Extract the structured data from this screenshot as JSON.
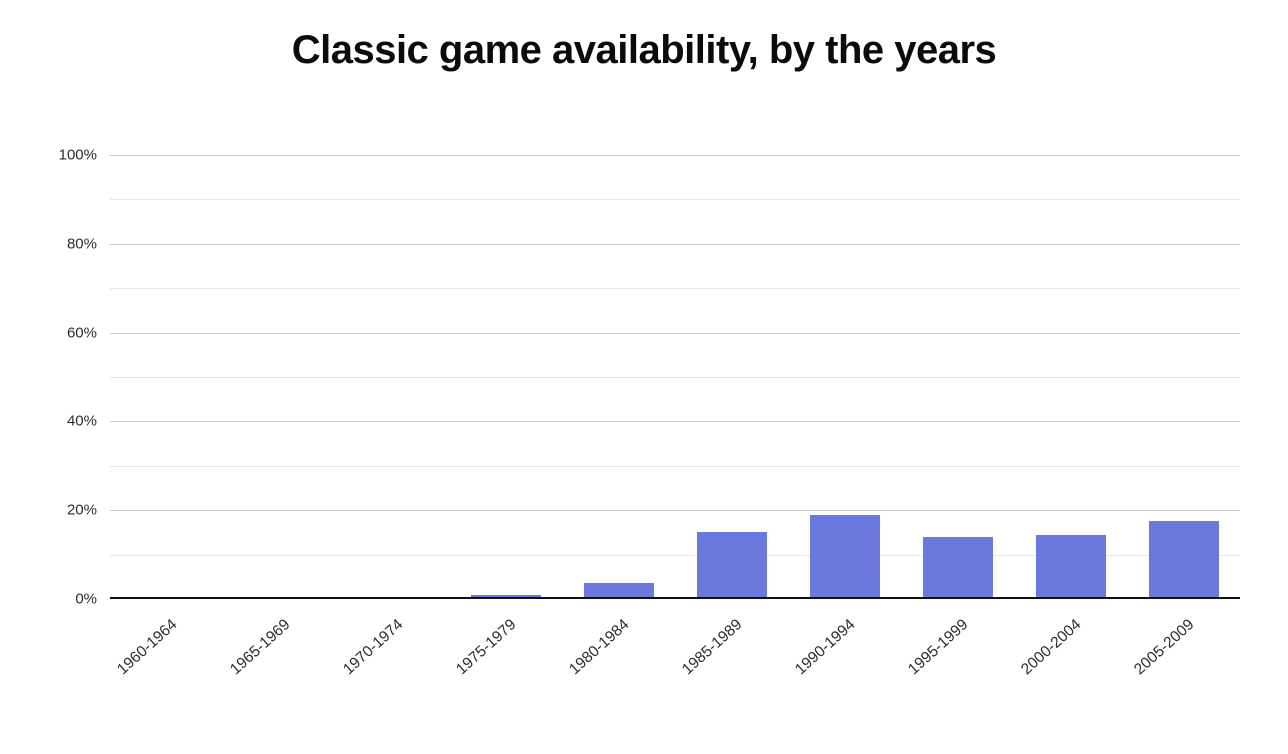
{
  "chart": {
    "title": "Classic game availability, by the years"
  },
  "chart_data": {
    "type": "bar",
    "title": "Classic game availability, by the years",
    "categories": [
      "1960-1964",
      "1965-1969",
      "1970-1974",
      "1975-1979",
      "1980-1984",
      "1985-1989",
      "1990-1994",
      "1995-1999",
      "2000-2004",
      "2005-2009"
    ],
    "values": [
      0,
      0,
      0,
      1,
      3.5,
      15,
      19,
      14,
      14.5,
      17.5
    ],
    "xlabel": "",
    "ylabel": "",
    "ylim": [
      0,
      100
    ],
    "yticks": [
      0,
      20,
      40,
      60,
      80,
      100
    ],
    "ytick_labels": [
      "0%",
      "20%",
      "40%",
      "60%",
      "80%",
      "100%"
    ],
    "minor_gridlines": [
      10,
      30,
      50,
      70,
      90
    ],
    "grid": "on",
    "legend": "none",
    "colors": {
      "bar": "#6b79de",
      "major_grid": "#c9c9c9",
      "minor_grid": "#e6e6e6",
      "axis": "#111111",
      "tick_text": "#2e2e2e",
      "title_text": "#0b0b0b",
      "background": "#ffffff"
    }
  }
}
